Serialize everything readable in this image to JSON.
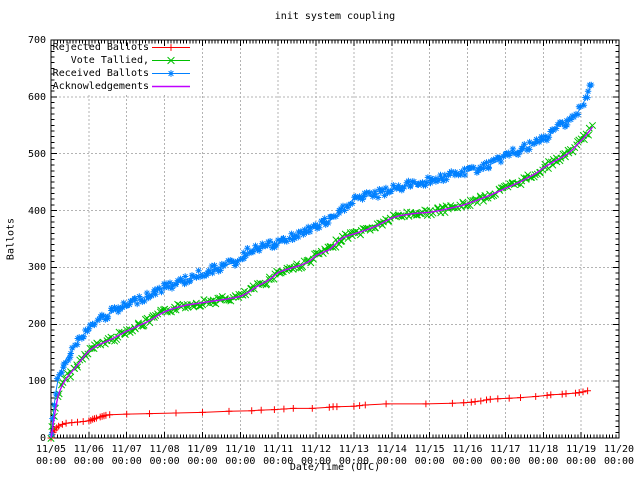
{
  "chart_data": {
    "type": "line",
    "title": "init system coupling",
    "xlabel": "Date/Time (UTC)",
    "ylabel": "Ballots",
    "x_units": "days since 11/05 00:00 UTC",
    "xlim_days": [
      0,
      15
    ],
    "ylim": [
      0,
      700
    ],
    "y_ticks": [
      0,
      100,
      200,
      300,
      400,
      500,
      600,
      700
    ],
    "x_tick_dates": [
      "11/05",
      "11/06",
      "11/07",
      "11/08",
      "11/09",
      "11/10",
      "11/11",
      "11/12",
      "11/13",
      "11/14",
      "11/15",
      "11/16",
      "11/17",
      "11/18",
      "11/19",
      "11/20"
    ],
    "x_tick_time": "00:00",
    "grid": true,
    "legend_position": "top-left-inside",
    "axis_color": "#000000",
    "grid_color": "#b3b3b3",
    "background": "#ffffff",
    "series": [
      {
        "name": "Rejected Ballots",
        "color": "#ff0000",
        "marker": "plus",
        "dense_markers": false,
        "points": [
          [
            0,
            0
          ],
          [
            0.03,
            6
          ],
          [
            0.06,
            10
          ],
          [
            0.1,
            14
          ],
          [
            0.15,
            18
          ],
          [
            0.2,
            21
          ],
          [
            0.3,
            24
          ],
          [
            0.4,
            26
          ],
          [
            0.55,
            27
          ],
          [
            0.7,
            28
          ],
          [
            0.85,
            29
          ],
          [
            1,
            30
          ],
          [
            1.05,
            31
          ],
          [
            1.1,
            33
          ],
          [
            1.15,
            34
          ],
          [
            1.2,
            35
          ],
          [
            1.3,
            37
          ],
          [
            1.35,
            38
          ],
          [
            1.4,
            39
          ],
          [
            1.45,
            40
          ],
          [
            1.55,
            41
          ],
          [
            2,
            42
          ],
          [
            2.6,
            43
          ],
          [
            3.3,
            44
          ],
          [
            4,
            45
          ],
          [
            4.7,
            47
          ],
          [
            5.3,
            48
          ],
          [
            5.55,
            49
          ],
          [
            5.9,
            50
          ],
          [
            6.15,
            51
          ],
          [
            6.4,
            52
          ],
          [
            6.9,
            52
          ],
          [
            7.35,
            54
          ],
          [
            7.45,
            55
          ],
          [
            7.55,
            55
          ],
          [
            8,
            56
          ],
          [
            8.15,
            57
          ],
          [
            8.3,
            58
          ],
          [
            8.85,
            60
          ],
          [
            9.9,
            60
          ],
          [
            10.6,
            61
          ],
          [
            10.9,
            62
          ],
          [
            11.1,
            63
          ],
          [
            11.2,
            64
          ],
          [
            11.35,
            65
          ],
          [
            11.5,
            67
          ],
          [
            11.6,
            68
          ],
          [
            11.8,
            69
          ],
          [
            12.1,
            70
          ],
          [
            12.4,
            71
          ],
          [
            12.8,
            73
          ],
          [
            13.1,
            75
          ],
          [
            13.2,
            76
          ],
          [
            13.5,
            77
          ],
          [
            13.6,
            78
          ],
          [
            13.85,
            79
          ],
          [
            13.95,
            80
          ],
          [
            14.05,
            81
          ],
          [
            14.17,
            83
          ]
        ]
      },
      {
        "name": "Vote Tallied,",
        "color": "#00c000",
        "marker": "cross",
        "dense_markers": true,
        "points": [
          [
            0,
            0
          ],
          [
            0.04,
            15
          ],
          [
            0.08,
            34
          ],
          [
            0.13,
            55
          ],
          [
            0.18,
            72
          ],
          [
            0.25,
            86
          ],
          [
            0.33,
            97
          ],
          [
            0.42,
            106
          ],
          [
            0.5,
            113
          ],
          [
            0.58,
            119
          ],
          [
            0.67,
            126
          ],
          [
            0.75,
            133
          ],
          [
            0.83,
            140
          ],
          [
            0.92,
            147
          ],
          [
            1,
            153
          ],
          [
            1.1,
            158
          ],
          [
            1.2,
            162
          ],
          [
            1.33,
            166
          ],
          [
            1.5,
            171
          ],
          [
            1.67,
            176
          ],
          [
            1.83,
            182
          ],
          [
            2,
            188
          ],
          [
            2.17,
            193
          ],
          [
            2.33,
            198
          ],
          [
            2.5,
            203
          ],
          [
            2.67,
            209
          ],
          [
            2.83,
            216
          ],
          [
            3,
            222
          ],
          [
            3.2,
            227
          ],
          [
            3.4,
            231
          ],
          [
            3.6,
            234
          ],
          [
            3.8,
            236
          ],
          [
            4,
            238
          ],
          [
            4.2,
            240
          ],
          [
            4.4,
            242
          ],
          [
            4.6,
            244
          ],
          [
            4.8,
            246
          ],
          [
            5,
            249
          ],
          [
            5.1,
            252
          ],
          [
            5.25,
            258
          ],
          [
            5.4,
            265
          ],
          [
            5.6,
            272
          ],
          [
            5.8,
            280
          ],
          [
            6,
            291
          ],
          [
            6.2,
            296
          ],
          [
            6.4,
            300
          ],
          [
            6.6,
            304
          ],
          [
            6.8,
            310
          ],
          [
            6.9,
            315
          ],
          [
            7,
            321
          ],
          [
            7.2,
            327
          ],
          [
            7.35,
            331
          ],
          [
            7.5,
            340
          ],
          [
            7.6,
            347
          ],
          [
            7.7,
            352
          ],
          [
            7.85,
            356
          ],
          [
            8,
            359
          ],
          [
            8.2,
            363
          ],
          [
            8.4,
            368
          ],
          [
            8.6,
            373
          ],
          [
            8.8,
            380
          ],
          [
            9,
            387
          ],
          [
            9.2,
            391
          ],
          [
            9.4,
            393
          ],
          [
            9.6,
            395
          ],
          [
            9.8,
            396
          ],
          [
            10,
            397
          ],
          [
            10.2,
            399
          ],
          [
            10.4,
            402
          ],
          [
            10.6,
            405
          ],
          [
            10.8,
            408
          ],
          [
            11,
            412
          ],
          [
            11.2,
            417
          ],
          [
            11.4,
            422
          ],
          [
            11.6,
            427
          ],
          [
            11.8,
            433
          ],
          [
            12,
            439
          ],
          [
            12.2,
            445
          ],
          [
            12.4,
            451
          ],
          [
            12.6,
            458
          ],
          [
            12.8,
            465
          ],
          [
            12.9,
            470
          ],
          [
            13,
            475
          ],
          [
            13.15,
            481
          ],
          [
            13.3,
            487
          ],
          [
            13.45,
            492
          ],
          [
            13.6,
            498
          ],
          [
            13.7,
            503
          ],
          [
            13.8,
            509
          ],
          [
            13.9,
            516
          ],
          [
            14,
            523
          ],
          [
            14.1,
            530
          ],
          [
            14.2,
            538
          ],
          [
            14.3,
            547
          ]
        ]
      },
      {
        "name": "Received Ballots",
        "color": "#0080ff",
        "marker": "star",
        "dense_markers": true,
        "points": [
          [
            0,
            0
          ],
          [
            0.04,
            25
          ],
          [
            0.08,
            55
          ],
          [
            0.13,
            82
          ],
          [
            0.18,
            100
          ],
          [
            0.25,
            116
          ],
          [
            0.33,
            130
          ],
          [
            0.42,
            141
          ],
          [
            0.5,
            149
          ],
          [
            0.58,
            156
          ],
          [
            0.67,
            165
          ],
          [
            0.75,
            173
          ],
          [
            0.83,
            180
          ],
          [
            0.92,
            186
          ],
          [
            1,
            192
          ],
          [
            1.1,
            199
          ],
          [
            1.2,
            205
          ],
          [
            1.33,
            211
          ],
          [
            1.5,
            217
          ],
          [
            1.67,
            223
          ],
          [
            1.83,
            228
          ],
          [
            2,
            233
          ],
          [
            2.17,
            239
          ],
          [
            2.33,
            244
          ],
          [
            2.5,
            249
          ],
          [
            2.67,
            254
          ],
          [
            2.83,
            260
          ],
          [
            3,
            265
          ],
          [
            3.2,
            270
          ],
          [
            3.4,
            274
          ],
          [
            3.6,
            279
          ],
          [
            3.8,
            284
          ],
          [
            4,
            290
          ],
          [
            4.2,
            295
          ],
          [
            4.4,
            299
          ],
          [
            4.6,
            303
          ],
          [
            4.8,
            308
          ],
          [
            5,
            314
          ],
          [
            5.1,
            321
          ],
          [
            5.25,
            329
          ],
          [
            5.4,
            335
          ],
          [
            5.6,
            338
          ],
          [
            5.8,
            339
          ],
          [
            6,
            341
          ],
          [
            6.2,
            349
          ],
          [
            6.35,
            354
          ],
          [
            6.5,
            357
          ],
          [
            6.65,
            361
          ],
          [
            6.8,
            366
          ],
          [
            7,
            372
          ],
          [
            7.1,
            375
          ],
          [
            7.2,
            378
          ],
          [
            7.35,
            382
          ],
          [
            7.5,
            388
          ],
          [
            7.6,
            393
          ],
          [
            7.7,
            400
          ],
          [
            7.8,
            408
          ],
          [
            7.9,
            415
          ],
          [
            8,
            420
          ],
          [
            8.1,
            422
          ],
          [
            8.25,
            424
          ],
          [
            8.4,
            426
          ],
          [
            8.55,
            428
          ],
          [
            8.7,
            431
          ],
          [
            8.85,
            434
          ],
          [
            9,
            437
          ],
          [
            9.15,
            440
          ],
          [
            9.3,
            443
          ],
          [
            9.5,
            446
          ],
          [
            9.7,
            449
          ],
          [
            9.85,
            451
          ],
          [
            10,
            453
          ],
          [
            10.2,
            456
          ],
          [
            10.4,
            459
          ],
          [
            10.6,
            462
          ],
          [
            10.8,
            465
          ],
          [
            11,
            469
          ],
          [
            11.2,
            473
          ],
          [
            11.4,
            477
          ],
          [
            11.6,
            481
          ],
          [
            11.8,
            487
          ],
          [
            12,
            497
          ],
          [
            12.2,
            501
          ],
          [
            12.35,
            505
          ],
          [
            12.5,
            509
          ],
          [
            12.65,
            513
          ],
          [
            12.8,
            518
          ],
          [
            13,
            524
          ],
          [
            13.1,
            529
          ],
          [
            13.2,
            535
          ],
          [
            13.3,
            542
          ],
          [
            13.4,
            549
          ],
          [
            13.5,
            553
          ],
          [
            13.6,
            556
          ],
          [
            13.7,
            560
          ],
          [
            13.8,
            565
          ],
          [
            13.9,
            572
          ],
          [
            14,
            581
          ],
          [
            14.05,
            588
          ],
          [
            14.1,
            595
          ],
          [
            14.15,
            602
          ],
          [
            14.2,
            610
          ],
          [
            14.25,
            618
          ],
          [
            14.3,
            624
          ]
        ]
      },
      {
        "name": "Acknowledgements",
        "color": "#c000ff",
        "marker": "none",
        "dense_markers": false,
        "points_same_as_series": 1
      }
    ]
  }
}
